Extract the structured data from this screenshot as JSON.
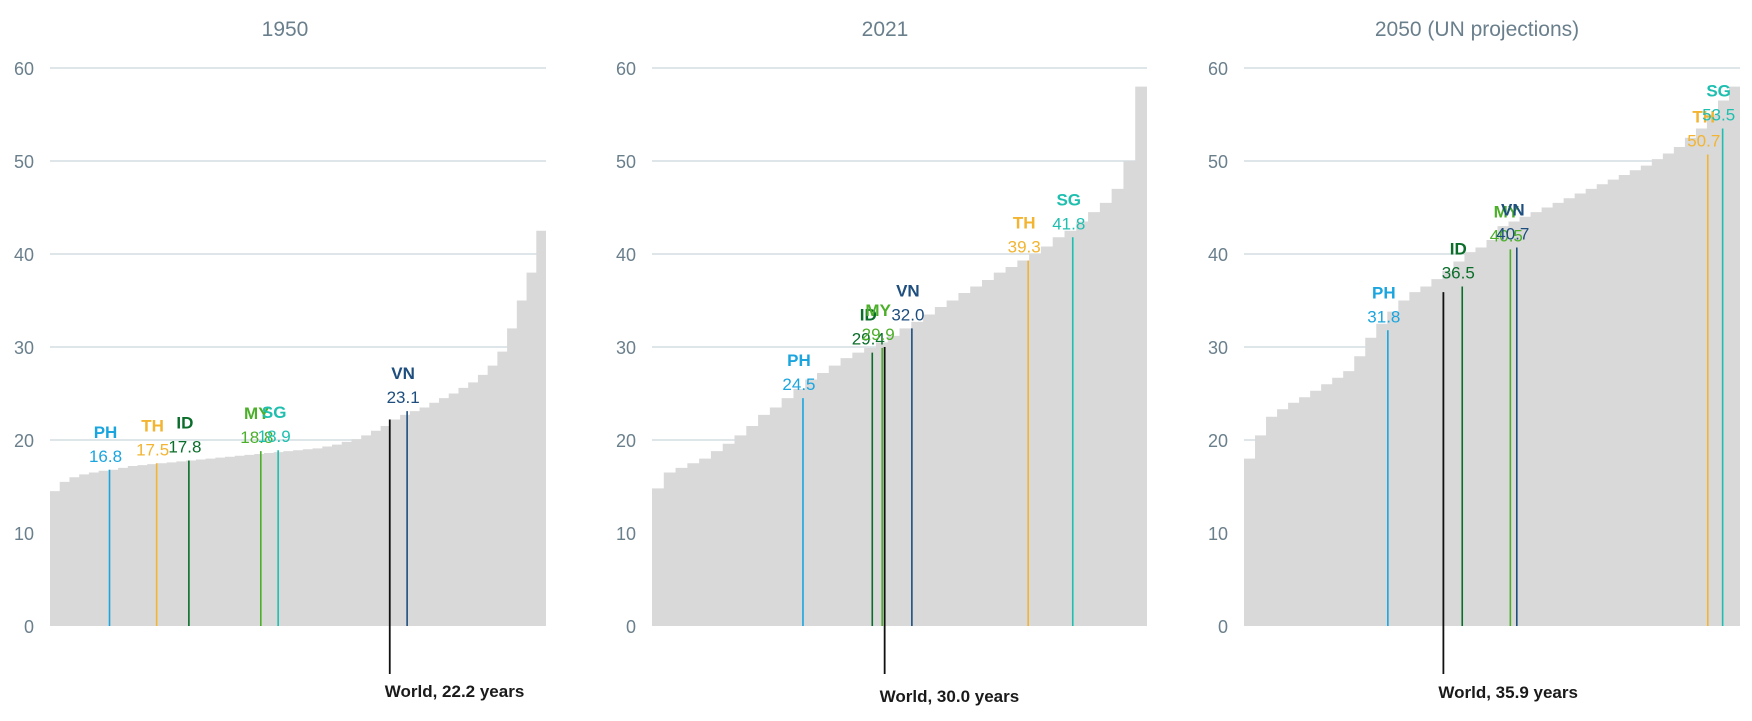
{
  "chart_data": [
    {
      "type": "area",
      "title": "1950",
      "ylim": [
        0,
        60
      ],
      "yticks": [
        0,
        10,
        20,
        30,
        40,
        50,
        60
      ],
      "grid": true,
      "sorted_country_profile": [
        14.5,
        15.5,
        16.0,
        16.3,
        16.5,
        16.7,
        16.8,
        17.0,
        17.2,
        17.3,
        17.4,
        17.5,
        17.6,
        17.7,
        17.8,
        17.9,
        18.0,
        18.1,
        18.2,
        18.3,
        18.4,
        18.5,
        18.6,
        18.7,
        18.8,
        18.9,
        19.0,
        19.1,
        19.3,
        19.5,
        19.8,
        20.1,
        20.5,
        21.0,
        21.5,
        22.2,
        22.7,
        23.1,
        23.5,
        24.0,
        24.5,
        25.0,
        25.6,
        26.2,
        27.0,
        28.0,
        29.5,
        32.0,
        35.0,
        38.0,
        42.5
      ],
      "countries": [
        {
          "code": "PH",
          "label": "16.8",
          "value": 16.8,
          "color": "#1ba5de",
          "rank": 0.12
        },
        {
          "code": "TH",
          "label": "17.5",
          "value": 17.5,
          "color": "#f2b431",
          "rank": 0.215
        },
        {
          "code": "ID",
          "label": "17.8",
          "value": 17.8,
          "color": "#0a6e2a",
          "rank": 0.28
        },
        {
          "code": "MY",
          "label": "18.8",
          "value": 18.8,
          "color": "#4caf2a",
          "rank": 0.425
        },
        {
          "code": "SG",
          "label": "18.9",
          "value": 18.9,
          "color": "#1fbfb0",
          "rank": 0.46
        },
        {
          "code": "VN",
          "label": "23.1",
          "value": 23.1,
          "color": "#1d4e7e",
          "rank": 0.72
        }
      ],
      "world": {
        "label": "World, 22.2 years",
        "value": 22.2,
        "rank": 0.685
      }
    },
    {
      "type": "area",
      "title": "2021",
      "ylim": [
        0,
        60
      ],
      "yticks": [
        0,
        10,
        20,
        30,
        40,
        50,
        60
      ],
      "grid": true,
      "sorted_country_profile": [
        14.8,
        16.5,
        17.0,
        17.5,
        18.0,
        18.8,
        19.6,
        20.5,
        21.5,
        22.7,
        23.5,
        24.5,
        25.5,
        26.5,
        27.2,
        28.0,
        28.8,
        29.4,
        29.9,
        30.5,
        31.2,
        32.0,
        32.7,
        33.5,
        34.3,
        35.0,
        35.8,
        36.5,
        37.2,
        38.0,
        38.6,
        39.3,
        40.0,
        40.8,
        41.8,
        42.5,
        43.5,
        44.5,
        45.5,
        47.0,
        50.0,
        58.0
      ],
      "countries": [
        {
          "code": "PH",
          "label": "24.5",
          "value": 24.5,
          "color": "#1ba5de",
          "rank": 0.305
        },
        {
          "code": "ID",
          "label": "29.4",
          "value": 29.4,
          "color": "#0a6e2a",
          "rank": 0.445
        },
        {
          "code": "MY",
          "label": "29.9",
          "value": 29.9,
          "color": "#4caf2a",
          "rank": 0.465
        },
        {
          "code": "VN",
          "label": "32.0",
          "value": 32.0,
          "color": "#1d4e7e",
          "rank": 0.525
        },
        {
          "code": "TH",
          "label": "39.3",
          "value": 39.3,
          "color": "#f2b431",
          "rank": 0.76
        },
        {
          "code": "SG",
          "label": "41.8",
          "value": 41.8,
          "color": "#1fbfb0",
          "rank": 0.85
        }
      ],
      "world": {
        "label": "World, 30.0 years",
        "value": 30.0,
        "rank": 0.47
      }
    },
    {
      "type": "area",
      "title": "2050 (UN projections)",
      "ylim": [
        0,
        60
      ],
      "yticks": [
        0,
        10,
        20,
        30,
        40,
        50,
        60
      ],
      "grid": true,
      "sorted_country_profile": [
        18.0,
        20.5,
        22.5,
        23.3,
        24.0,
        24.6,
        25.3,
        26.0,
        26.7,
        27.4,
        29.0,
        31.0,
        32.5,
        33.8,
        35.0,
        35.9,
        36.5,
        37.3,
        38.2,
        39.2,
        40.2,
        40.7,
        41.5,
        43.0,
        43.5,
        44.0,
        44.5,
        45.0,
        45.5,
        46.0,
        46.5,
        47.0,
        47.5,
        48.0,
        48.5,
        49.0,
        49.5,
        50.2,
        50.8,
        51.5,
        52.5,
        53.5,
        55.0,
        56.5,
        58.0
      ],
      "countries": [
        {
          "code": "PH",
          "label": "31.8",
          "value": 31.8,
          "color": "#1ba5de",
          "rank": 0.29
        },
        {
          "code": "ID",
          "label": "36.5",
          "value": 36.5,
          "color": "#0a6e2a",
          "rank": 0.44
        },
        {
          "code": "MY",
          "label": "40.5",
          "value": 40.5,
          "color": "#4caf2a",
          "rank": 0.537
        },
        {
          "code": "VN",
          "label": "40.7",
          "value": 40.7,
          "color": "#1d4e7e",
          "rank": 0.55
        },
        {
          "code": "TH",
          "label": "50.7",
          "value": 50.7,
          "color": "#f2b431",
          "rank": 0.935
        },
        {
          "code": "SG",
          "label": "53.5",
          "value": 53.5,
          "color": "#1fbfb0",
          "rank": 0.965
        }
      ],
      "world": {
        "label": "World, 35.9 years",
        "value": 35.9,
        "rank": 0.402
      }
    }
  ],
  "colors": {
    "area": "#d9d9d9",
    "grid": "#d3dde2",
    "axis_text": "#6a7f8c",
    "title_text": "#6a7f8c",
    "world_line": "#111111"
  }
}
